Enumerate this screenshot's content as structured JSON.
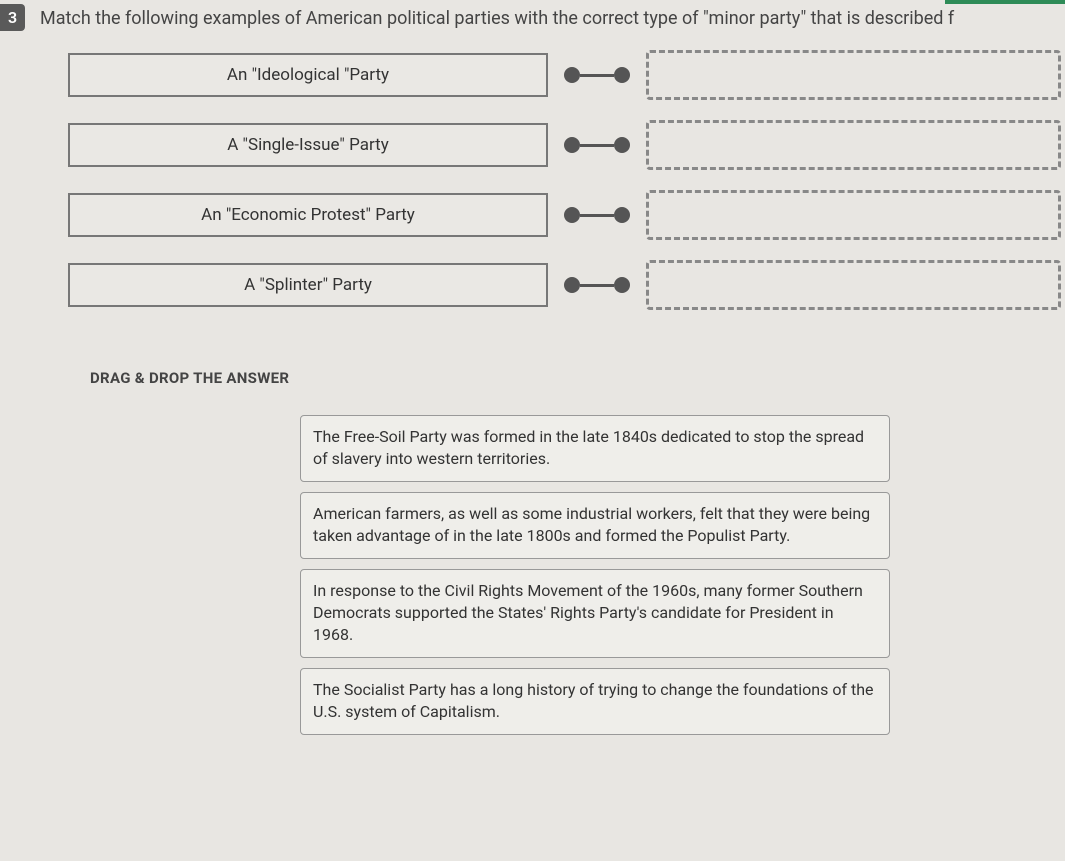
{
  "question": {
    "number": "3",
    "prompt": "Match the following examples of American political parties with the correct type of \"minor party\" that is described f"
  },
  "matching": {
    "left_items": [
      {
        "label": "An \"Ideological \"Party"
      },
      {
        "label": "A \"Single-Issue\" Party"
      },
      {
        "label": "An \"Economic Protest\" Party"
      },
      {
        "label": "A \"Splinter\" Party"
      }
    ]
  },
  "drag": {
    "title": "DRAG & DROP THE ANSWER",
    "answers": [
      "The Free-Soil Party was formed in the late 1840s dedicated to stop the spread of slavery into western territories.",
      "American farmers, as well as some industrial workers, felt that they were being taken advantage of in the late 1800s and formed the Populist Party.",
      "In response to the Civil Rights Movement of the 1960s, many former Southern Democrats supported the States' Rights Party's candidate for President in 1968.",
      "The Socialist Party has a long history of trying to change the foundations of the U.S. system of Capitalism."
    ]
  },
  "accent_color": "#2e8b57"
}
